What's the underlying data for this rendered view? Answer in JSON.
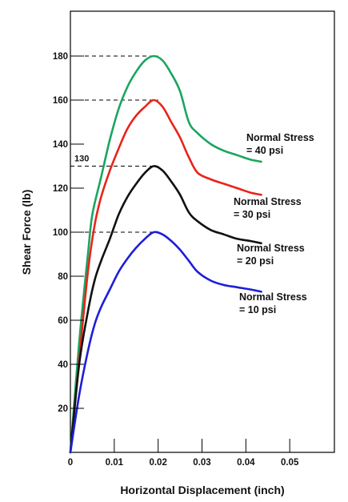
{
  "chart_data": {
    "type": "line",
    "title": "",
    "xlabel": "Horizontal Displacement (inch)",
    "ylabel": "Shear Force (lb)",
    "xlim": [
      0,
      0.06
    ],
    "ylim": [
      0,
      200
    ],
    "x_ticks": [
      0,
      0.01,
      0.02,
      0.03,
      0.04,
      0.05
    ],
    "x_tick_labels": [
      "0",
      "0.01",
      "0.02",
      "0.03",
      "0.04",
      "0.05"
    ],
    "y_ticks": [
      20,
      40,
      60,
      80,
      100,
      120,
      140,
      160,
      180
    ],
    "y_tick_labels": [
      "20",
      "40",
      "60",
      "80",
      "100",
      "120",
      "140",
      "160",
      "180"
    ],
    "grid": false,
    "peak_annotation": "130",
    "series": [
      {
        "label_line1": "Normal Stress",
        "label_line2": "= 40 psi",
        "color": "#1aa560",
        "peak": 180,
        "x": [
          0,
          0.002,
          0.004,
          0.005,
          0.007,
          0.009,
          0.011,
          0.013,
          0.015,
          0.017,
          0.019,
          0.021,
          0.023,
          0.025,
          0.027,
          0.029,
          0.032,
          0.035,
          0.038,
          0.041,
          0.0435
        ],
        "y": [
          0,
          50,
          90,
          108,
          125,
          142,
          156,
          166,
          173,
          178,
          180,
          178,
          172,
          164,
          150,
          145,
          140,
          137,
          135,
          133,
          132
        ]
      },
      {
        "label_line1": "Normal Stress",
        "label_line2": "= 30 psi",
        "color": "#e8241b",
        "peak": 160,
        "x": [
          0,
          0.002,
          0.004,
          0.0055,
          0.007,
          0.009,
          0.011,
          0.013,
          0.015,
          0.017,
          0.019,
          0.021,
          0.023,
          0.025,
          0.027,
          0.029,
          0.032,
          0.035,
          0.038,
          0.041,
          0.0435
        ],
        "y": [
          0,
          42,
          82,
          103,
          116,
          128,
          138,
          147,
          153,
          157,
          160,
          157,
          150,
          143,
          134,
          127,
          124,
          122,
          120,
          118,
          117
        ]
      },
      {
        "label_line1": "Normal Stress",
        "label_line2": "= 20 psi",
        "color": "#111111",
        "peak": 130,
        "x": [
          0,
          0.002,
          0.004,
          0.0055,
          0.007,
          0.009,
          0.011,
          0.013,
          0.015,
          0.017,
          0.019,
          0.021,
          0.023,
          0.025,
          0.027,
          0.029,
          0.032,
          0.035,
          0.038,
          0.041,
          0.0435
        ],
        "y": [
          0,
          40,
          64,
          78,
          87,
          97,
          108,
          116,
          122,
          127,
          130,
          128,
          123,
          117,
          109,
          105,
          101,
          99,
          97,
          96,
          95
        ]
      },
      {
        "label_line1": "Normal Stress",
        "label_line2": "= 10 psi",
        "color": "#1d1ed6",
        "peak": 100,
        "x": [
          0,
          0.002,
          0.004,
          0.0055,
          0.007,
          0.009,
          0.011,
          0.013,
          0.015,
          0.017,
          0.019,
          0.021,
          0.023,
          0.025,
          0.027,
          0.029,
          0.032,
          0.035,
          0.038,
          0.041,
          0.0435
        ],
        "y": [
          0,
          26,
          46,
          58,
          66,
          74,
          82,
          88,
          93,
          97,
          100,
          99,
          96,
          92,
          87,
          82,
          78,
          76,
          75,
          74,
          73
        ]
      }
    ]
  }
}
